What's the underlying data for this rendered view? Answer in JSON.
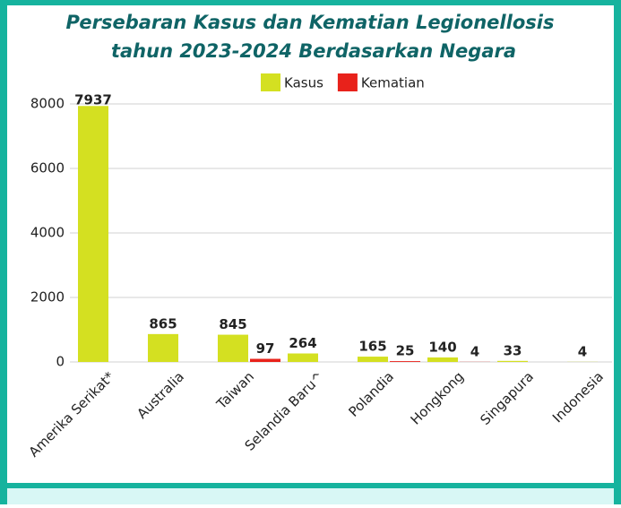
{
  "chart_data": {
    "type": "bar",
    "title": [
      "Persebaran Kasus dan Kematian Legionellosis",
      "tahun 2023-2024  Berdasarkan Negara"
    ],
    "categories": [
      "Amerika Serikat*",
      "Australia",
      "Taiwan",
      "Selandia Baru^",
      "Polandia",
      "Hongkong",
      "Singapura",
      "Indonesia"
    ],
    "series": [
      {
        "name": "Kasus",
        "color": "#d4e021",
        "label_color": "#b5c400",
        "values": [
          7937,
          865,
          845,
          264,
          165,
          140,
          33,
          4
        ]
      },
      {
        "name": "Kematian",
        "color": "#e8221b",
        "label_color": "#e02020",
        "values": [
          null,
          null,
          97,
          null,
          25,
          4,
          null,
          null
        ]
      }
    ],
    "ylim": [
      0,
      8000
    ],
    "yticks": [
      0,
      2000,
      4000,
      6000,
      8000
    ],
    "grid": true,
    "legend": "top"
  }
}
